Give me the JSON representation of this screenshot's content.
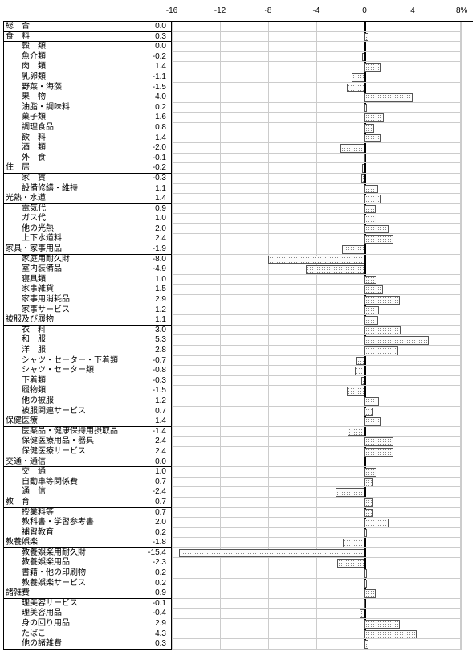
{
  "chart": {
    "type": "bar-horizontal",
    "xmin": -16,
    "xmax": 8,
    "xtick_step": 4,
    "xticks": [
      -16,
      -12,
      -8,
      -4,
      0,
      4
    ],
    "unit_label": "8%",
    "bar_fill": "#f0f0f0",
    "bar_pattern": "dots",
    "bar_border": "#555555",
    "grid_color": "#cccccc",
    "zero_color": "#000000",
    "background": "#ffffff",
    "label_font_size": 10
  },
  "rows": [
    {
      "label": "総　合",
      "value": 0.0,
      "cat": true
    },
    {
      "label": "食　料",
      "value": 0.3,
      "cat": true
    },
    {
      "label": "穀　類",
      "value": 0.0
    },
    {
      "label": "魚介類",
      "value": -0.2
    },
    {
      "label": "肉　類",
      "value": 1.4
    },
    {
      "label": "乳卵類",
      "value": -1.1
    },
    {
      "label": "野菜・海藻",
      "value": -1.5
    },
    {
      "label": "果　物",
      "value": 4.0
    },
    {
      "label": "油脂・調味料",
      "value": 0.2
    },
    {
      "label": "菓子類",
      "value": 1.6
    },
    {
      "label": "調理食品",
      "value": 0.8
    },
    {
      "label": "飲　料",
      "value": 1.4
    },
    {
      "label": "酒　類",
      "value": -2.0
    },
    {
      "label": "外　食",
      "value": -0.1
    },
    {
      "label": "住　居",
      "value": -0.2,
      "cat": true
    },
    {
      "label": "家　賃",
      "value": -0.3
    },
    {
      "label": "設備修繕・維持",
      "value": 1.1
    },
    {
      "label": "光熱・水道",
      "value": 1.4,
      "cat": true
    },
    {
      "label": "電気代",
      "value": 0.9
    },
    {
      "label": "ガス代",
      "value": 1.0
    },
    {
      "label": "他の光熱",
      "value": 2.0
    },
    {
      "label": "上下水道料",
      "value": 2.4
    },
    {
      "label": "家具・家事用品",
      "value": -1.9,
      "cat": true
    },
    {
      "label": "家庭用耐久財",
      "value": -8.0
    },
    {
      "label": "室内装備品",
      "value": -4.9
    },
    {
      "label": "寝具類",
      "value": 1.0
    },
    {
      "label": "家事雑貨",
      "value": 1.5
    },
    {
      "label": "家事用消耗品",
      "value": 2.9
    },
    {
      "label": "家事サービス",
      "value": 1.2
    },
    {
      "label": "被服及び履物",
      "value": 1.1,
      "cat": true
    },
    {
      "label": "衣　料",
      "value": 3.0
    },
    {
      "label": "和　服",
      "value": 5.3
    },
    {
      "label": "洋　服",
      "value": 2.8
    },
    {
      "label": "シャツ・セーター・下着類",
      "value": -0.7
    },
    {
      "label": "シャツ・セーター類",
      "value": -0.8
    },
    {
      "label": "下着類",
      "value": -0.3
    },
    {
      "label": "履物類",
      "value": -1.5
    },
    {
      "label": "他の被服",
      "value": 1.2
    },
    {
      "label": "被服関連サービス",
      "value": 0.7
    },
    {
      "label": "保健医療",
      "value": 1.4,
      "cat": true
    },
    {
      "label": "医薬品・健康保持用摂取品",
      "value": -1.4
    },
    {
      "label": "保健医療用品・器具",
      "value": 2.4
    },
    {
      "label": "保健医療サービス",
      "value": 2.4
    },
    {
      "label": "交通・通信",
      "value": 0.0,
      "cat": true
    },
    {
      "label": "交　通",
      "value": 1.0
    },
    {
      "label": "自動車等関係費",
      "value": 0.7
    },
    {
      "label": "通　信",
      "value": -2.4
    },
    {
      "label": "教　育",
      "value": 0.7,
      "cat": true
    },
    {
      "label": "授業料等",
      "value": 0.7
    },
    {
      "label": "教科書・学習参考書",
      "value": 2.0
    },
    {
      "label": "補習教育",
      "value": 0.2
    },
    {
      "label": "教養娯楽",
      "value": -1.8,
      "cat": true
    },
    {
      "label": "教養娯楽用耐久財",
      "value": -15.4
    },
    {
      "label": "教養娯楽用品",
      "value": -2.3
    },
    {
      "label": "書籍・他の印刷物",
      "value": 0.2
    },
    {
      "label": "教養娯楽サービス",
      "value": 0.2
    },
    {
      "label": "諸雑費",
      "value": 0.9,
      "cat": true
    },
    {
      "label": "理美容サービス",
      "value": -0.1
    },
    {
      "label": "理美容用品",
      "value": -0.4
    },
    {
      "label": "身の回り用品",
      "value": 2.9
    },
    {
      "label": "たばこ",
      "value": 4.3
    },
    {
      "label": "他の諸雑費",
      "value": 0.3
    }
  ]
}
